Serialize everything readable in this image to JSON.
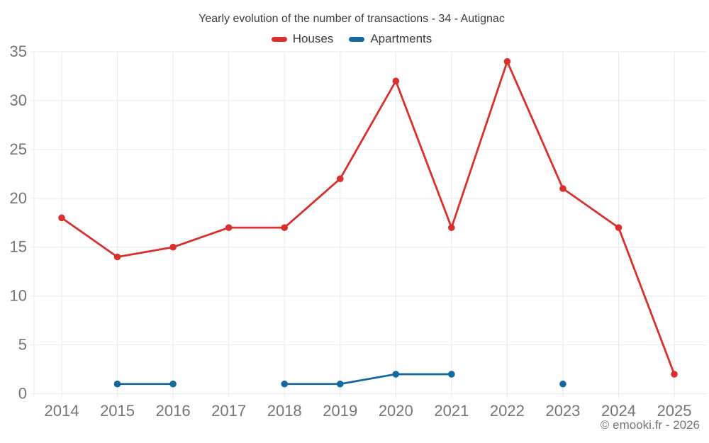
{
  "title": "Yearly evolution of the number of transactions - 34 - Autignac",
  "legend": [
    {
      "label": "Houses",
      "color": "#d9302e"
    },
    {
      "label": "Apartments",
      "color": "#16699f"
    }
  ],
  "copyright": "© emooki.fr - 2026",
  "colors": {
    "grid": "#e9e9e9",
    "tick_label": "#757575",
    "title_text": "#3d3d3d",
    "background": "#ffffff"
  },
  "chart_data": {
    "type": "line",
    "title": "Yearly evolution of the number of transactions - 34 - Autignac",
    "categories": [
      "2014",
      "2015",
      "2016",
      "2017",
      "2018",
      "2019",
      "2020",
      "2021",
      "2022",
      "2023",
      "2024",
      "2025"
    ],
    "series": [
      {
        "name": "Houses",
        "color": "#d9302e",
        "values": [
          18,
          14,
          15,
          17,
          17,
          22,
          32,
          17,
          34,
          21,
          17,
          2
        ]
      },
      {
        "name": "Apartments",
        "color": "#16699f",
        "values": [
          null,
          1,
          1,
          null,
          1,
          1,
          2,
          2,
          null,
          1,
          null,
          null
        ]
      }
    ],
    "xlabel": "",
    "ylabel": "",
    "ylim": [
      0,
      35
    ],
    "yticks": [
      0,
      5,
      10,
      15,
      20,
      25,
      30,
      35
    ],
    "grid": true,
    "legend_position": "top"
  }
}
